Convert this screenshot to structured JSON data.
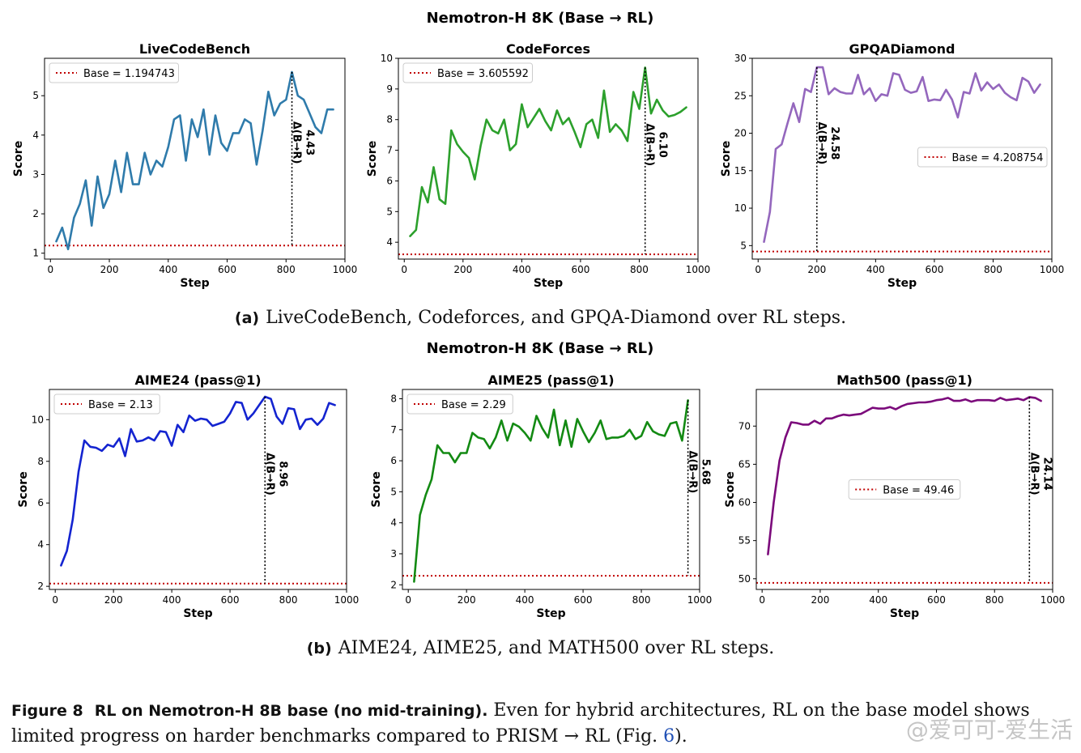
{
  "suptitles": [
    "Nemotron-H 8K (Base → RL)",
    "Nemotron-H 8K (Base → RL)"
  ],
  "subcaptions": [
    {
      "label": "(a)",
      "text": "LiveCodeBench, Codeforces, and GPQA-Diamond over RL steps."
    },
    {
      "label": "(b)",
      "text": "AIME24, AIME25, and MATH500 over RL steps."
    }
  ],
  "figure_caption": {
    "label": "Figure 8",
    "title": "RL on Nemotron-H 8B base (no mid-training).",
    "text": "Even for hybrid architectures, RL on the base model shows limited progress on harder benchmarks compared to PRISM → RL (Fig.",
    "ref": "6",
    "end": ")."
  },
  "watermark": "@爱可可-爱生活",
  "chart_data": [
    {
      "type": "line",
      "title": "LiveCodeBench",
      "xlabel": "Step",
      "ylabel": "Score",
      "color": "#2f7bab",
      "xlim": [
        -20,
        1000
      ],
      "ylim": [
        0.85,
        5.95
      ],
      "xticks": [
        0,
        200,
        400,
        600,
        800,
        1000
      ],
      "yticks": [
        1,
        2,
        3,
        4,
        5
      ],
      "base": 1.194743,
      "base_label": "Base = 1.194743",
      "legend": "top-left",
      "delta_x": 820,
      "delta_label": "Δ(B→R)",
      "delta_value": "4.43",
      "x": [
        20,
        40,
        60,
        80,
        100,
        120,
        140,
        160,
        180,
        200,
        220,
        240,
        260,
        280,
        300,
        320,
        340,
        360,
        380,
        400,
        420,
        440,
        460,
        480,
        500,
        520,
        540,
        560,
        580,
        600,
        620,
        640,
        660,
        680,
        700,
        720,
        740,
        760,
        780,
        800,
        820,
        840,
        860,
        880,
        900,
        920,
        940,
        960
      ],
      "y": [
        1.3,
        1.65,
        1.1,
        1.9,
        2.25,
        2.85,
        1.7,
        2.95,
        2.15,
        2.5,
        3.35,
        2.55,
        3.55,
        2.75,
        2.75,
        3.55,
        3.0,
        3.35,
        3.2,
        3.7,
        4.4,
        4.5,
        3.35,
        4.4,
        3.95,
        4.65,
        3.5,
        4.5,
        3.8,
        3.6,
        4.05,
        4.05,
        4.4,
        4.3,
        3.25,
        4.1,
        5.1,
        4.5,
        4.8,
        4.9,
        5.6,
        5.0,
        4.9,
        4.55,
        4.2,
        4.05,
        4.65,
        4.65
      ]
    },
    {
      "type": "line",
      "title": "CodeForces",
      "xlabel": "Step",
      "ylabel": "Score",
      "color": "#2ca02c",
      "xlim": [
        -20,
        1000
      ],
      "ylim": [
        3.45,
        10.0
      ],
      "xticks": [
        0,
        200,
        400,
        600,
        800,
        1000
      ],
      "yticks": [
        4,
        5,
        6,
        7,
        8,
        9,
        10
      ],
      "base": 3.605592,
      "base_label": "Base = 3.605592",
      "legend": "top-left",
      "delta_x": 820,
      "delta_label": "Δ(B→R)",
      "delta_value": "6.10",
      "x": [
        20,
        40,
        60,
        80,
        100,
        120,
        140,
        160,
        180,
        200,
        220,
        240,
        260,
        280,
        300,
        320,
        340,
        360,
        380,
        400,
        420,
        440,
        460,
        480,
        500,
        520,
        540,
        560,
        580,
        600,
        620,
        640,
        660,
        680,
        700,
        720,
        740,
        760,
        780,
        800,
        820,
        840,
        860,
        880,
        900,
        920,
        940,
        960
      ],
      "y": [
        4.2,
        4.4,
        5.8,
        5.3,
        6.45,
        5.4,
        5.25,
        7.65,
        7.2,
        6.95,
        6.75,
        6.05,
        7.15,
        8.0,
        7.65,
        7.55,
        8.0,
        7.0,
        7.2,
        8.5,
        7.75,
        8.05,
        8.35,
        7.95,
        7.65,
        8.3,
        7.85,
        8.05,
        7.6,
        7.1,
        7.85,
        8.0,
        7.4,
        8.95,
        7.6,
        7.85,
        7.65,
        7.3,
        8.9,
        8.35,
        9.7,
        8.2,
        8.65,
        8.3,
        8.1,
        8.15,
        8.25,
        8.4
      ]
    },
    {
      "type": "line",
      "title": "GPQADiamond",
      "xlabel": "Step",
      "ylabel": "Score",
      "color": "#9467bd",
      "xlim": [
        -20,
        1000
      ],
      "ylim": [
        3.2,
        30.0
      ],
      "xticks": [
        0,
        200,
        400,
        600,
        800,
        1000
      ],
      "yticks": [
        5,
        10,
        15,
        20,
        25,
        30
      ],
      "base": 4.208754,
      "base_label": "Base = 4.208754",
      "legend": "center-right",
      "delta_x": 200,
      "delta_label": "Δ(B→R)",
      "delta_value": "24.58",
      "x": [
        20,
        40,
        60,
        80,
        100,
        120,
        140,
        160,
        180,
        200,
        220,
        240,
        260,
        280,
        300,
        320,
        340,
        360,
        380,
        400,
        420,
        440,
        460,
        480,
        500,
        520,
        540,
        560,
        580,
        600,
        620,
        640,
        660,
        680,
        700,
        720,
        740,
        760,
        780,
        800,
        820,
        840,
        860,
        880,
        900,
        920,
        940,
        960
      ],
      "y": [
        5.5,
        9.5,
        17.9,
        18.5,
        21.3,
        24.0,
        21.5,
        25.9,
        25.5,
        28.8,
        28.8,
        25.2,
        26.0,
        25.5,
        25.3,
        25.3,
        27.8,
        25.2,
        26.0,
        24.3,
        25.2,
        25.0,
        28.0,
        27.8,
        25.8,
        25.4,
        25.6,
        27.5,
        24.3,
        24.5,
        24.4,
        25.8,
        24.5,
        22.1,
        25.5,
        25.3,
        28.0,
        25.7,
        26.8,
        25.9,
        26.5,
        25.4,
        24.8,
        24.4,
        27.4,
        26.9,
        25.4,
        26.5
      ]
    },
    {
      "type": "line",
      "title": "AIME24 (pass@1)",
      "xlabel": "Step",
      "ylabel": "Score",
      "color": "#1424d0",
      "xlim": [
        -20,
        1000
      ],
      "ylim": [
        1.85,
        11.45
      ],
      "xticks": [
        0,
        200,
        400,
        600,
        800,
        1000
      ],
      "yticks": [
        2,
        4,
        6,
        8,
        10
      ],
      "base": 2.13,
      "base_label": "Base = 2.13",
      "legend": "top-left",
      "delta_x": 720,
      "delta_label": "Δ(B→R)",
      "delta_value": "8.96",
      "x": [
        20,
        40,
        60,
        80,
        100,
        120,
        140,
        160,
        180,
        200,
        220,
        240,
        260,
        280,
        300,
        320,
        340,
        360,
        380,
        400,
        420,
        440,
        460,
        480,
        500,
        520,
        540,
        560,
        580,
        600,
        620,
        640,
        660,
        680,
        700,
        720,
        740,
        760,
        780,
        800,
        820,
        840,
        860,
        880,
        900,
        920,
        940,
        960
      ],
      "y": [
        3.0,
        3.7,
        5.2,
        7.5,
        9.0,
        8.7,
        8.65,
        8.5,
        8.8,
        8.7,
        9.1,
        8.25,
        9.55,
        8.95,
        9.0,
        9.15,
        9.0,
        9.45,
        9.4,
        8.75,
        9.75,
        9.4,
        10.2,
        9.95,
        10.05,
        10.0,
        9.7,
        9.8,
        9.9,
        10.3,
        10.85,
        10.8,
        10.0,
        10.3,
        10.7,
        11.1,
        11.0,
        10.15,
        9.8,
        10.55,
        10.5,
        9.55,
        10.0,
        10.05,
        9.75,
        10.05,
        10.8,
        10.7
      ]
    },
    {
      "type": "line",
      "title": "AIME25 (pass@1)",
      "xlabel": "Step",
      "ylabel": "Score",
      "color": "#138a13",
      "xlim": [
        -20,
        1000
      ],
      "ylim": [
        1.85,
        8.3
      ],
      "xticks": [
        0,
        200,
        400,
        600,
        800,
        1000
      ],
      "yticks": [
        2,
        3,
        4,
        5,
        6,
        7,
        8
      ],
      "base": 2.29,
      "base_label": "Base = 2.29",
      "legend": "top-left",
      "delta_x": 960,
      "delta_label": "Δ(B→R)",
      "delta_value": "5.68",
      "x": [
        20,
        40,
        60,
        80,
        100,
        120,
        140,
        160,
        180,
        200,
        220,
        240,
        260,
        280,
        300,
        320,
        340,
        360,
        380,
        400,
        420,
        440,
        460,
        480,
        500,
        520,
        540,
        560,
        580,
        600,
        620,
        640,
        660,
        680,
        700,
        720,
        740,
        760,
        780,
        800,
        820,
        840,
        860,
        880,
        900,
        920,
        940,
        960
      ],
      "y": [
        2.1,
        4.25,
        4.9,
        5.4,
        6.5,
        6.25,
        6.25,
        5.95,
        6.25,
        6.25,
        6.9,
        6.75,
        6.7,
        6.4,
        6.75,
        7.3,
        6.65,
        7.2,
        7.1,
        6.9,
        6.65,
        7.45,
        7.05,
        6.75,
        7.65,
        6.5,
        7.3,
        6.45,
        7.35,
        6.95,
        6.6,
        6.9,
        7.3,
        6.7,
        6.75,
        6.75,
        6.8,
        7.0,
        6.7,
        6.8,
        7.25,
        6.95,
        6.85,
        6.8,
        7.2,
        7.25,
        6.65,
        7.95
      ]
    },
    {
      "type": "line",
      "title": "Math500 (pass@1)",
      "xlabel": "Step",
      "ylabel": "Score",
      "color": "#7b0a7b",
      "xlim": [
        -20,
        1000
      ],
      "ylim": [
        48.6,
        74.8
      ],
      "xticks": [
        0,
        200,
        400,
        600,
        800,
        1000
      ],
      "yticks": [
        50,
        55,
        60,
        65,
        70
      ],
      "base": 49.46,
      "base_label": "Base = 49.46",
      "legend": "center",
      "delta_x": 920,
      "delta_label": "Δ(B→R)",
      "delta_value": "24.14",
      "x": [
        20,
        40,
        60,
        80,
        100,
        120,
        140,
        160,
        180,
        200,
        220,
        240,
        260,
        280,
        300,
        320,
        340,
        360,
        380,
        400,
        420,
        440,
        460,
        480,
        500,
        520,
        540,
        560,
        580,
        600,
        620,
        640,
        660,
        680,
        700,
        720,
        740,
        760,
        780,
        800,
        820,
        840,
        860,
        880,
        900,
        920,
        940,
        960
      ],
      "y": [
        53.2,
        60.0,
        65.5,
        68.5,
        70.5,
        70.4,
        70.2,
        70.2,
        70.7,
        70.3,
        71.0,
        71.0,
        71.3,
        71.5,
        71.4,
        71.5,
        71.6,
        72.0,
        72.4,
        72.3,
        72.3,
        72.5,
        72.2,
        72.6,
        72.9,
        73.0,
        73.1,
        73.1,
        73.2,
        73.4,
        73.5,
        73.7,
        73.3,
        73.3,
        73.5,
        73.2,
        73.4,
        73.4,
        73.4,
        73.3,
        73.7,
        73.4,
        73.5,
        73.6,
        73.4,
        73.8,
        73.7,
        73.3
      ]
    }
  ]
}
